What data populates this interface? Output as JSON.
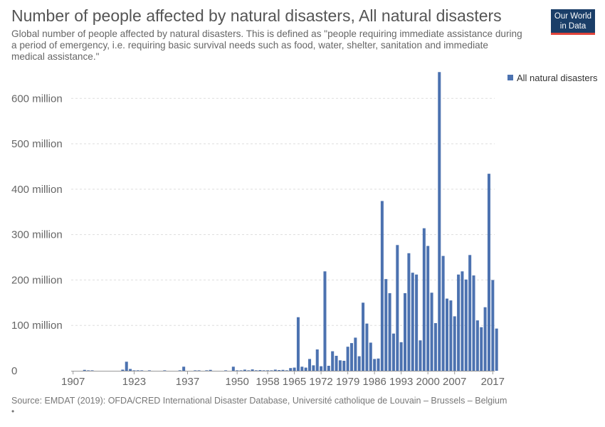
{
  "header": {
    "title": "Number of people affected by natural disasters, All natural disasters",
    "subtitle": "Global number of people affected by natural disasters. This is defined as \"people requiring immediate assistance during a period of emergency, i.e. requiring basic survival needs such as food, water, shelter, sanitation and immediate medical assistance.\"",
    "logo_line1": "Our World",
    "logo_line2": "in Data"
  },
  "footer": {
    "source": "Source: EMDAT (2019): OFDA/CRED International Disaster Database, Université catholique de Louvain – Brussels – Belgium",
    "footnote": "•"
  },
  "colors": {
    "bar": "#4c72b0",
    "grid": "#dddddd",
    "axis": "#999999",
    "logo_bg": "#1a3e68",
    "logo_accent": "#e0433a"
  },
  "chart_data": {
    "type": "bar",
    "title": "Number of people affected by natural disasters, All natural disasters",
    "xlabel": "",
    "ylabel": "",
    "xlim": [
      1907,
      2017
    ],
    "ylim": [
      0,
      660000000
    ],
    "y_ticks": [
      {
        "value": 0,
        "label": "0"
      },
      {
        "value": 100000000,
        "label": "100 million"
      },
      {
        "value": 200000000,
        "label": "200 million"
      },
      {
        "value": 300000000,
        "label": "300 million"
      },
      {
        "value": 400000000,
        "label": "400 million"
      },
      {
        "value": 500000000,
        "label": "500 million"
      },
      {
        "value": 600000000,
        "label": "600 million"
      }
    ],
    "x_ticks": [
      1907,
      1923,
      1937,
      1950,
      1958,
      1965,
      1972,
      1979,
      1986,
      1993,
      2000,
      2007,
      2017
    ],
    "grid": true,
    "legend_position": "top-right",
    "series": [
      {
        "name": "All natural disasters",
        "points": [
          {
            "x": 1910,
            "y": 2000000
          },
          {
            "x": 1911,
            "y": 300000
          },
          {
            "x": 1912,
            "y": 200000
          },
          {
            "x": 1920,
            "y": 2500000
          },
          {
            "x": 1921,
            "y": 20000000
          },
          {
            "x": 1922,
            "y": 4000000
          },
          {
            "x": 1923,
            "y": 500000
          },
          {
            "x": 1924,
            "y": 1000000
          },
          {
            "x": 1925,
            "y": 300000
          },
          {
            "x": 1927,
            "y": 300000
          },
          {
            "x": 1931,
            "y": 500000
          },
          {
            "x": 1935,
            "y": 1000000
          },
          {
            "x": 1936,
            "y": 9000000
          },
          {
            "x": 1939,
            "y": 500000
          },
          {
            "x": 1940,
            "y": 300000
          },
          {
            "x": 1942,
            "y": 1000000
          },
          {
            "x": 1943,
            "y": 2000000
          },
          {
            "x": 1947,
            "y": 500000
          },
          {
            "x": 1949,
            "y": 9000000
          },
          {
            "x": 1950,
            "y": 1000000
          },
          {
            "x": 1951,
            "y": 500000
          },
          {
            "x": 1952,
            "y": 2500000
          },
          {
            "x": 1953,
            "y": 1000000
          },
          {
            "x": 1954,
            "y": 3000000
          },
          {
            "x": 1955,
            "y": 1000000
          },
          {
            "x": 1956,
            "y": 1500000
          },
          {
            "x": 1957,
            "y": 600000
          },
          {
            "x": 1958,
            "y": 1000000
          },
          {
            "x": 1959,
            "y": 800000
          },
          {
            "x": 1960,
            "y": 2500000
          },
          {
            "x": 1961,
            "y": 1500000
          },
          {
            "x": 1962,
            "y": 2000000
          },
          {
            "x": 1963,
            "y": 1000000
          },
          {
            "x": 1964,
            "y": 6000000
          },
          {
            "x": 1965,
            "y": 7000000
          },
          {
            "x": 1966,
            "y": 118000000
          },
          {
            "x": 1967,
            "y": 9000000
          },
          {
            "x": 1968,
            "y": 7000000
          },
          {
            "x": 1969,
            "y": 26000000
          },
          {
            "x": 1970,
            "y": 12000000
          },
          {
            "x": 1971,
            "y": 47000000
          },
          {
            "x": 1972,
            "y": 10000000
          },
          {
            "x": 1973,
            "y": 219000000
          },
          {
            "x": 1974,
            "y": 11000000
          },
          {
            "x": 1975,
            "y": 43000000
          },
          {
            "x": 1976,
            "y": 33000000
          },
          {
            "x": 1977,
            "y": 23000000
          },
          {
            "x": 1978,
            "y": 22000000
          },
          {
            "x": 1979,
            "y": 53000000
          },
          {
            "x": 1980,
            "y": 61000000
          },
          {
            "x": 1981,
            "y": 73000000
          },
          {
            "x": 1982,
            "y": 32000000
          },
          {
            "x": 1983,
            "y": 150000000
          },
          {
            "x": 1984,
            "y": 104000000
          },
          {
            "x": 1985,
            "y": 62000000
          },
          {
            "x": 1986,
            "y": 26000000
          },
          {
            "x": 1987,
            "y": 27000000
          },
          {
            "x": 1988,
            "y": 374000000
          },
          {
            "x": 1989,
            "y": 202000000
          },
          {
            "x": 1990,
            "y": 171000000
          },
          {
            "x": 1991,
            "y": 82000000
          },
          {
            "x": 1992,
            "y": 277000000
          },
          {
            "x": 1993,
            "y": 63000000
          },
          {
            "x": 1994,
            "y": 171000000
          },
          {
            "x": 1995,
            "y": 259000000
          },
          {
            "x": 1996,
            "y": 216000000
          },
          {
            "x": 1997,
            "y": 212000000
          },
          {
            "x": 1998,
            "y": 67000000
          },
          {
            "x": 1999,
            "y": 314000000
          },
          {
            "x": 2000,
            "y": 275000000
          },
          {
            "x": 2001,
            "y": 172000000
          },
          {
            "x": 2002,
            "y": 105000000
          },
          {
            "x": 2003,
            "y": 658000000
          },
          {
            "x": 2004,
            "y": 253000000
          },
          {
            "x": 2005,
            "y": 159000000
          },
          {
            "x": 2006,
            "y": 155000000
          },
          {
            "x": 2007,
            "y": 120000000
          },
          {
            "x": 2008,
            "y": 212000000
          },
          {
            "x": 2009,
            "y": 219000000
          },
          {
            "x": 2010,
            "y": 201000000
          },
          {
            "x": 2011,
            "y": 255000000
          },
          {
            "x": 2012,
            "y": 210000000
          },
          {
            "x": 2013,
            "y": 111000000
          },
          {
            "x": 2014,
            "y": 96000000
          },
          {
            "x": 2015,
            "y": 140000000
          },
          {
            "x": 2016,
            "y": 434000000
          },
          {
            "x": 2017,
            "y": 200000000
          },
          {
            "x": 2018,
            "y": 93000000
          }
        ]
      }
    ]
  }
}
